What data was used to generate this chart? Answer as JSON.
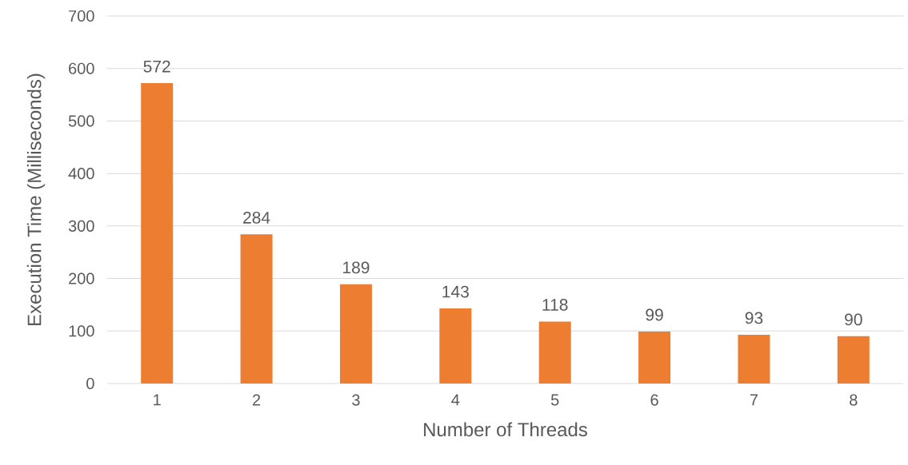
{
  "chart_data": {
    "type": "bar",
    "xlabel": "Number of Threads",
    "ylabel": "Execution Time (Milliseconds)",
    "categories": [
      "1",
      "2",
      "3",
      "4",
      "5",
      "6",
      "7",
      "8"
    ],
    "values": [
      572,
      284,
      189,
      143,
      118,
      99,
      93,
      90
    ],
    "color": "#ed7d31",
    "data_labels": true,
    "ylim": [
      0,
      700
    ],
    "yticks": [
      0,
      100,
      200,
      300,
      400,
      500,
      600,
      700
    ],
    "grid": "y"
  }
}
